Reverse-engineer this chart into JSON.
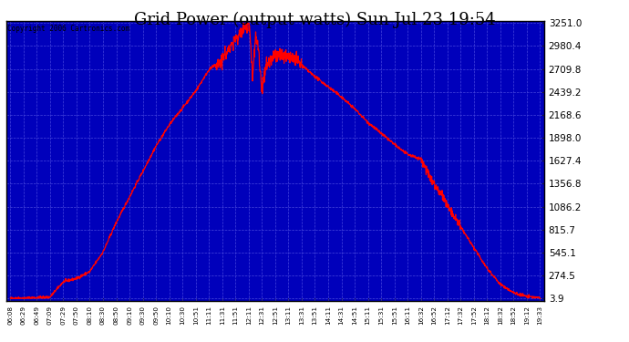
{
  "title": "Grid Power (output watts) Sun Jul 23 19:54",
  "copyright": "Copyright 2006 Cartronics.com",
  "plot_bg_color": "#0000bb",
  "line_color": "#ff0000",
  "grid_color": "#3333ff",
  "ytick_labels": [
    "3.9",
    "274.5",
    "545.1",
    "815.7",
    "1086.2",
    "1356.8",
    "1627.4",
    "1898.0",
    "2168.6",
    "2439.2",
    "2709.8",
    "2980.4",
    "3251.0"
  ],
  "ytick_values": [
    3.9,
    274.5,
    545.1,
    815.7,
    1086.2,
    1356.8,
    1627.4,
    1898.0,
    2168.6,
    2439.2,
    2709.8,
    2980.4,
    3251.0
  ],
  "xtick_labels": [
    "06:08",
    "06:29",
    "06:49",
    "07:09",
    "07:29",
    "07:50",
    "08:10",
    "08:30",
    "08:50",
    "09:10",
    "09:30",
    "09:50",
    "10:10",
    "10:30",
    "10:51",
    "11:11",
    "11:31",
    "11:51",
    "12:11",
    "12:31",
    "12:51",
    "13:11",
    "13:31",
    "13:51",
    "14:11",
    "14:31",
    "14:51",
    "15:11",
    "15:31",
    "15:51",
    "16:11",
    "16:32",
    "16:52",
    "17:12",
    "17:32",
    "17:52",
    "18:12",
    "18:32",
    "18:52",
    "19:12",
    "19:33"
  ],
  "ymin": 3.9,
  "ymax": 3251.0,
  "title_fontsize": 13,
  "keypoints_x": [
    0,
    1,
    2,
    3,
    4,
    5,
    6,
    7,
    8,
    9,
    10,
    11,
    12,
    13,
    14,
    15,
    16,
    17,
    18,
    18.1,
    18.3,
    18.5,
    18.7,
    19,
    19.3,
    19.8,
    20,
    20.5,
    21,
    22,
    23,
    24,
    25,
    26,
    27,
    28,
    29,
    30,
    31,
    31.5,
    32,
    32.5,
    33,
    34,
    35,
    36,
    37,
    38,
    39,
    40
  ],
  "keypoints_y": [
    5,
    8,
    12,
    20,
    200,
    240,
    320,
    550,
    900,
    1200,
    1500,
    1800,
    2050,
    2250,
    2450,
    2700,
    2820,
    3060,
    3251,
    3100,
    2600,
    3100,
    3000,
    2450,
    2750,
    2830,
    2870,
    2880,
    2870,
    2750,
    2620,
    2500,
    2380,
    2240,
    2080,
    1950,
    1820,
    1700,
    1650,
    1500,
    1350,
    1250,
    1100,
    850,
    600,
    360,
    170,
    70,
    28,
    10
  ]
}
